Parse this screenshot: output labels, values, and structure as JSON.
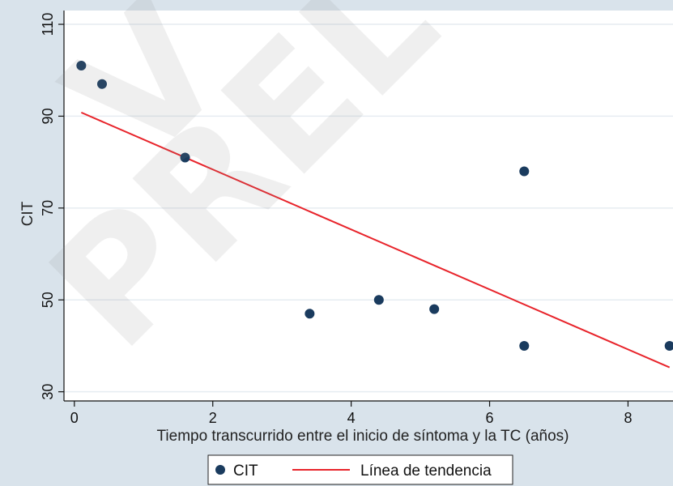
{
  "chart_data": {
    "type": "scatter",
    "xlabel": "Tiempo transcurrido entre el inicio de síntoma y la TC (años)",
    "ylabel": "CIT",
    "xlim": [
      -0.15,
      8.65
    ],
    "ylim": [
      28,
      113
    ],
    "xticks": [
      0,
      2,
      4,
      6,
      8
    ],
    "yticks": [
      30,
      50,
      70,
      90,
      110
    ],
    "grid": true,
    "legend_position": "bottom",
    "series": [
      {
        "name": "CIT",
        "kind": "scatter",
        "color": "#1a3b5e",
        "points": [
          {
            "x": 0.1,
            "y": 101
          },
          {
            "x": 0.4,
            "y": 97
          },
          {
            "x": 1.6,
            "y": 81
          },
          {
            "x": 3.4,
            "y": 47
          },
          {
            "x": 4.4,
            "y": 50
          },
          {
            "x": 5.2,
            "y": 48
          },
          {
            "x": 6.5,
            "y": 78
          },
          {
            "x": 6.5,
            "y": 40
          },
          {
            "x": 8.6,
            "y": 40
          }
        ]
      },
      {
        "name": "Línea de tendencia",
        "kind": "line",
        "color": "#e8242b",
        "points": [
          {
            "x": 0.1,
            "y": 90.8
          },
          {
            "x": 8.6,
            "y": 35.3
          }
        ]
      }
    ]
  }
}
